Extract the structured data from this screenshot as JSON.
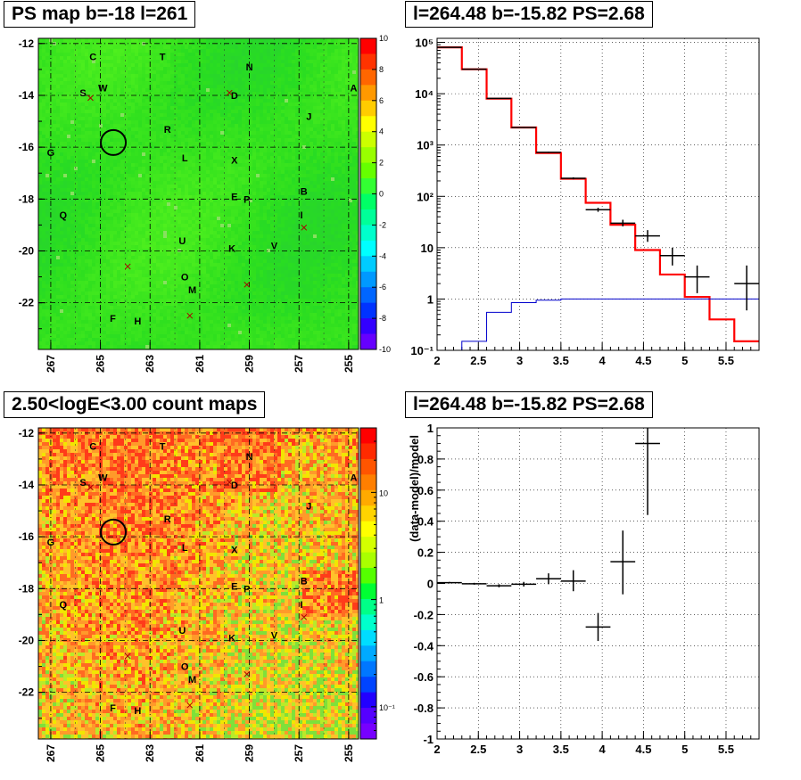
{
  "panels": {
    "ps_map": {
      "title": "PS map b=-18 l=261",
      "colorbar_ticks": [
        "10",
        "8",
        "6",
        "4",
        "2",
        "0",
        "-2",
        "-4",
        "-6",
        "-8",
        "-10"
      ],
      "y_ticks": [
        "-12",
        "-14",
        "-16",
        "-18",
        "-20",
        "-22"
      ],
      "x_ticks": [
        "267",
        "265",
        "263",
        "261",
        "259",
        "257",
        "255"
      ]
    },
    "count_map": {
      "title": "2.50<logE<3.00 count maps",
      "colorbar_ticks": [
        "10",
        "1",
        "10⁻¹"
      ],
      "y_ticks": [
        "-12",
        "-14",
        "-16",
        "-18",
        "-20",
        "-22"
      ],
      "x_ticks": [
        "267",
        "265",
        "263",
        "261",
        "259",
        "257",
        "255"
      ]
    },
    "spectrum": {
      "title": "l=264.48 b=-15.82 PS=2.68"
    },
    "residual": {
      "title": "l=264.48 b=-15.82 PS=2.68"
    }
  },
  "source_labels": [
    {
      "name": "C",
      "l": 265.3,
      "b": -12.5
    },
    {
      "name": "T",
      "l": 262.5,
      "b": -12.5
    },
    {
      "name": "N",
      "l": 259.0,
      "b": -12.9
    },
    {
      "name": "A",
      "l": 254.8,
      "b": -13.7
    },
    {
      "name": "S",
      "l": 265.7,
      "b": -13.9
    },
    {
      "name": "W",
      "l": 264.9,
      "b": -13.7
    },
    {
      "name": "D",
      "l": 259.6,
      "b": -14.0
    },
    {
      "name": "J",
      "l": 256.6,
      "b": -14.8
    },
    {
      "name": "R",
      "l": 262.3,
      "b": -15.3
    },
    {
      "name": "G",
      "l": 267.0,
      "b": -16.2
    },
    {
      "name": "L",
      "l": 261.6,
      "b": -16.4
    },
    {
      "name": "X",
      "l": 259.6,
      "b": -16.5
    },
    {
      "name": "B",
      "l": 256.8,
      "b": -17.7
    },
    {
      "name": "E",
      "l": 259.6,
      "b": -17.9
    },
    {
      "name": "P",
      "l": 259.1,
      "b": -18.0
    },
    {
      "name": "I",
      "l": 256.9,
      "b": -18.6
    },
    {
      "name": "Q",
      "l": 266.5,
      "b": -18.6
    },
    {
      "name": "U",
      "l": 261.7,
      "b": -19.6
    },
    {
      "name": "V",
      "l": 258.0,
      "b": -19.8
    },
    {
      "name": "K",
      "l": 259.7,
      "b": -19.9
    },
    {
      "name": "O",
      "l": 261.6,
      "b": -21.0
    },
    {
      "name": "M",
      "l": 261.3,
      "b": -21.5
    },
    {
      "name": "F",
      "l": 264.5,
      "b": -22.6
    },
    {
      "name": "H",
      "l": 263.5,
      "b": -22.7
    }
  ],
  "cross_markers": [
    {
      "l": 265.4,
      "b": -14.1
    },
    {
      "l": 259.8,
      "b": -13.9
    },
    {
      "l": 256.8,
      "b": -19.1
    },
    {
      "l": 263.9,
      "b": -20.6
    },
    {
      "l": 259.1,
      "b": -21.3
    },
    {
      "l": 261.4,
      "b": -22.5
    }
  ],
  "circle_marker": {
    "l": 264.48,
    "b": -15.82
  },
  "spectrum_axes": {
    "x_ticks": [
      "2",
      "2.5",
      "3",
      "3.5",
      "4",
      "4.5",
      "5",
      "5.5"
    ],
    "y_ticks": [
      "10⁻¹",
      "1",
      "10",
      "10²",
      "10³",
      "10⁴",
      "10⁵"
    ]
  },
  "residual_axes": {
    "ylabel": "(data-model)/model",
    "x_ticks": [
      "2",
      "2.5",
      "3",
      "3.5",
      "4",
      "4.5",
      "5",
      "5.5"
    ],
    "y_ticks": [
      "1",
      "0.8",
      "0.6",
      "0.4",
      "0.2",
      "0",
      "-0.2",
      "-0.4",
      "-0.6",
      "-0.8",
      "-1"
    ]
  },
  "colors": {
    "model": "#ff0000",
    "background": "#0000cc",
    "data": "#000000",
    "grid": "#000000"
  },
  "chart_data": [
    {
      "type": "heatmap",
      "title": "PS map b=-18 l=261",
      "xlim": [
        267.5,
        254.6
      ],
      "ylim": [
        -23.8,
        -11.8
      ],
      "zlim": [
        -10,
        10
      ],
      "note_values": "mostly 0 to 3 (green)"
    },
    {
      "type": "heatmap",
      "title": "2.50<logE<3.00 count maps",
      "xlim": [
        267.5,
        254.6
      ],
      "ylim": [
        -23.8,
        -11.8
      ],
      "zscale": "log",
      "zlim": [
        0.05,
        40
      ]
    },
    {
      "type": "line",
      "title": "l=264.48 b=-15.82 PS=2.68",
      "yscale": "log",
      "xlim": [
        2,
        5.9
      ],
      "ylim": [
        0.1,
        120000
      ],
      "series": [
        {
          "name": "",
          "style": "step",
          "color": "#ff0000",
          "edges": [
            2.0,
            2.3,
            2.6,
            2.9,
            3.2,
            3.5,
            3.8,
            4.1,
            4.4,
            4.7,
            5.0,
            5.3,
            5.6,
            5.9
          ],
          "values": [
            80000,
            30000,
            8000,
            2200,
            700,
            220,
            75,
            28,
            9,
            3,
            1.1,
            0.4,
            0.15
          ]
        },
        {
          "name": "",
          "style": "step",
          "color": "#0000cc",
          "edges": [
            2.0,
            2.3,
            2.6,
            2.9,
            3.2,
            3.5,
            3.8,
            4.1,
            4.4,
            4.7,
            5.0,
            5.3,
            5.6,
            5.9
          ],
          "values": [
            0.1,
            0.15,
            0.55,
            0.85,
            0.95,
            1.0,
            1.0,
            1.0,
            1.0,
            1.0,
            1.0,
            1.0,
            1.0
          ]
        },
        {
          "name": "",
          "style": "errorbar",
          "color": "#000000",
          "points": [
            {
              "x": 2.15,
              "y": 80000,
              "dx": 0.15,
              "lo": 79000,
              "hi": 81000
            },
            {
              "x": 2.45,
              "y": 30000,
              "dx": 0.15,
              "lo": 29700,
              "hi": 30300
            },
            {
              "x": 2.75,
              "y": 8100,
              "dx": 0.15,
              "lo": 8000,
              "hi": 8200
            },
            {
              "x": 3.05,
              "y": 2200,
              "dx": 0.15,
              "lo": 2150,
              "hi": 2250
            },
            {
              "x": 3.35,
              "y": 720,
              "dx": 0.15,
              "lo": 700,
              "hi": 740
            },
            {
              "x": 3.65,
              "y": 225,
              "dx": 0.15,
              "lo": 215,
              "hi": 235
            },
            {
              "x": 3.95,
              "y": 55,
              "dx": 0.15,
              "lo": 50,
              "hi": 60
            },
            {
              "x": 4.25,
              "y": 30,
              "dx": 0.15,
              "lo": 26,
              "hi": 35
            },
            {
              "x": 4.55,
              "y": 17,
              "dx": 0.15,
              "lo": 13,
              "hi": 22
            },
            {
              "x": 4.85,
              "y": 7,
              "dx": 0.15,
              "lo": 4.5,
              "hi": 10
            },
            {
              "x": 5.15,
              "y": 2.7,
              "dx": 0.15,
              "lo": 1.3,
              "hi": 4.5
            },
            {
              "x": 5.75,
              "y": 2.0,
              "dx": 0.15,
              "lo": 0.6,
              "hi": 4.5
            }
          ]
        }
      ]
    },
    {
      "type": "scatter",
      "title": "l=264.48 b=-15.82 PS=2.68",
      "ylabel": "(data-model)/model",
      "xlim": [
        2,
        5.9
      ],
      "ylim": [
        -1,
        1
      ],
      "series": [
        {
          "name": "",
          "style": "errorbar",
          "color": "#000000",
          "points": [
            {
              "x": 2.15,
              "y": 0.005,
              "dx": 0.15,
              "lo": 0.0,
              "hi": 0.01
            },
            {
              "x": 2.45,
              "y": -0.002,
              "dx": 0.15,
              "lo": -0.008,
              "hi": 0.004
            },
            {
              "x": 2.75,
              "y": -0.015,
              "dx": 0.15,
              "lo": -0.025,
              "hi": -0.005
            },
            {
              "x": 3.05,
              "y": -0.005,
              "dx": 0.15,
              "lo": -0.02,
              "hi": 0.01
            },
            {
              "x": 3.35,
              "y": 0.03,
              "dx": 0.15,
              "lo": -0.005,
              "hi": 0.065
            },
            {
              "x": 3.65,
              "y": 0.015,
              "dx": 0.15,
              "lo": -0.05,
              "hi": 0.085
            },
            {
              "x": 3.95,
              "y": -0.28,
              "dx": 0.15,
              "lo": -0.37,
              "hi": -0.19
            },
            {
              "x": 4.25,
              "y": 0.14,
              "dx": 0.15,
              "lo": -0.07,
              "hi": 0.34
            },
            {
              "x": 4.55,
              "y": 0.9,
              "dx": 0.15,
              "lo": 0.44,
              "hi": 1.0
            }
          ]
        }
      ]
    }
  ]
}
